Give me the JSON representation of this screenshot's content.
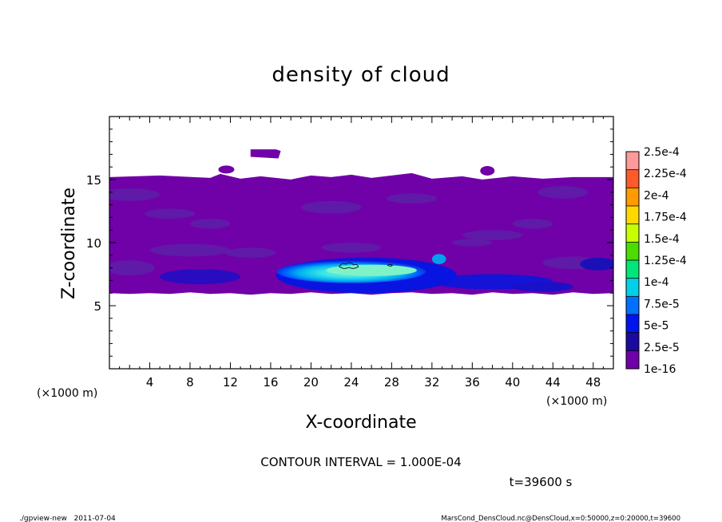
{
  "chart_data": {
    "type": "heatmap",
    "title": "density of cloud",
    "xlabel": "X-coordinate",
    "ylabel": "Z-coordinate",
    "x_unit_label": "(×1000 m)",
    "x_unit_label_right": "(×1000 m)",
    "xlim": [
      0,
      50
    ],
    "ylim": [
      0,
      20
    ],
    "x_ticks": [
      4,
      8,
      12,
      16,
      20,
      24,
      28,
      32,
      36,
      40,
      44,
      48
    ],
    "y_ticks": [
      5,
      10,
      15
    ],
    "colorbar": {
      "labels": [
        "2.5e-4",
        "2.25e-4",
        "2e-4",
        "1.75e-4",
        "1.5e-4",
        "1.25e-4",
        "1e-4",
        "7.5e-5",
        "5e-5",
        "2.5e-5",
        "1e-16"
      ],
      "colors": [
        "#ff9a9a",
        "#ff5a2a",
        "#ff9a00",
        "#ffd800",
        "#c8ff00",
        "#4cdc00",
        "#00e67a",
        "#00d0e8",
        "#0070ff",
        "#0014ee",
        "#1a0aa0",
        "#7000a8"
      ]
    },
    "cloud_layer": {
      "base_z": 6.0,
      "top_z": 15.2,
      "fill_color": "#7000a8",
      "isolated_blob_x": [
        14.0,
        17.0
      ],
      "isolated_blob_z": [
        16.8,
        17.4
      ],
      "dense_core_x": [
        17.5,
        33.5
      ],
      "dense_core_z": [
        6.8,
        8.6
      ],
      "peak_value_approx": 0.00011
    },
    "contour_interval_label": "CONTOUR INTERVAL = 1.000E-04",
    "time_label": "t=39600 s"
  },
  "footer": {
    "left": "./gpview-new   2011-07-04",
    "right": "MarsCond_DensCloud.nc@DensCloud,x=0:50000,z=0:20000,t=39600"
  }
}
